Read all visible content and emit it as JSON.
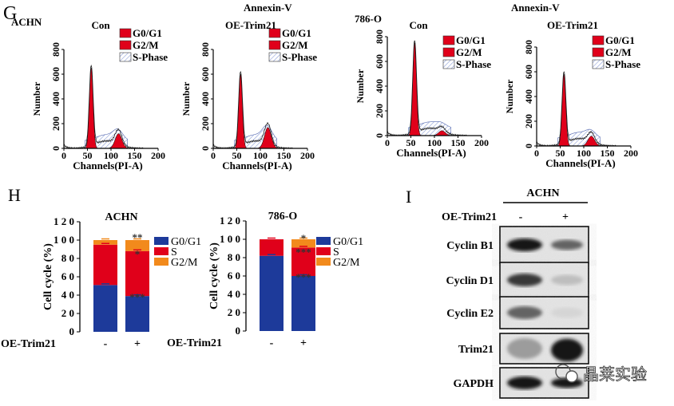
{
  "colors": {
    "red": "#e0001a",
    "blue": "#1d3a9a",
    "orange": "#f28a1c",
    "hatch": "#8b9dd6",
    "black": "#000000"
  },
  "panel_g": {
    "letter": "G",
    "annexin_label": "Annexin-V",
    "legend": [
      "G0/G1",
      "G2/M",
      "S-Phase"
    ],
    "xlabel": "Channels(PI-A)",
    "ylabel": "Number",
    "xticks": [
      "0",
      "50",
      "100",
      "150",
      "200"
    ],
    "yticks": [
      "0",
      "200",
      "400",
      "600",
      "800"
    ],
    "histograms": [
      {
        "cell_line": "ACHN",
        "condition": "Con",
        "g1_peak_height": 650,
        "g2_peak_height": 120
      },
      {
        "cell_line": "",
        "condition": "OE-Trim21",
        "g1_peak_height": 600,
        "g2_peak_height": 170
      },
      {
        "cell_line": "786-O",
        "condition": "Con",
        "g1_peak_height": 750,
        "g2_peak_height": 40
      },
      {
        "cell_line": "",
        "condition": "OE-Trim21",
        "g1_peak_height": 580,
        "g2_peak_height": 80
      }
    ]
  },
  "panel_h": {
    "letter": "H",
    "xlabel": "OE-Trim21",
    "ylabel": "Cell cycle (%)",
    "categories": [
      "-",
      "+"
    ],
    "chart_data": [
      {
        "type": "bar",
        "title": "ACHN",
        "stacked": true,
        "categories": [
          "-",
          "+"
        ],
        "series": [
          {
            "name": "G0/G1",
            "values": [
              51,
              39
            ]
          },
          {
            "name": "S",
            "values": [
              44,
              49
            ]
          },
          {
            "name": "G2/M",
            "values": [
              5,
              12
            ]
          }
        ],
        "ylim": [
          0,
          120
        ],
        "yticks": [
          "0",
          "20",
          "40",
          "60",
          "80",
          "100",
          "120"
        ],
        "annotations": {
          "g0g1_plus": "***",
          "s_plus": "*",
          "g2m_plus": "**"
        }
      },
      {
        "type": "bar",
        "title": "786-O",
        "stacked": true,
        "categories": [
          "-",
          "+"
        ],
        "series": [
          {
            "name": "G0/G1",
            "values": [
              82,
              60
            ]
          },
          {
            "name": "S",
            "values": [
              18,
              31
            ]
          },
          {
            "name": "G2/M",
            "values": [
              0,
              9
            ]
          }
        ],
        "ylim": [
          0,
          120
        ],
        "yticks": [
          "0",
          "20",
          "40",
          "60",
          "80",
          "100",
          "120"
        ],
        "annotations": {
          "g0g1_plus": "***",
          "s_plus": "***",
          "g2m_plus": "*"
        }
      }
    ]
  },
  "panel_i": {
    "letter": "I",
    "cell_line": "ACHN",
    "treatment_label": "OE-Trim21",
    "lane_labels": [
      "-",
      "+"
    ],
    "blots": [
      {
        "protein": "Cyclin B1",
        "minus_intensity": 0.95,
        "plus_intensity": 0.6
      },
      {
        "protein": "Cyclin D1",
        "minus_intensity": 0.8,
        "plus_intensity": 0.2
      },
      {
        "protein": "Cyclin E2",
        "minus_intensity": 0.6,
        "plus_intensity": 0.1
      },
      {
        "protein": "Trim21",
        "minus_intensity": 0.35,
        "plus_intensity": 0.95
      },
      {
        "protein": "GAPDH",
        "minus_intensity": 0.95,
        "plus_intensity": 0.95
      }
    ],
    "watermark": "晶莱实验"
  }
}
